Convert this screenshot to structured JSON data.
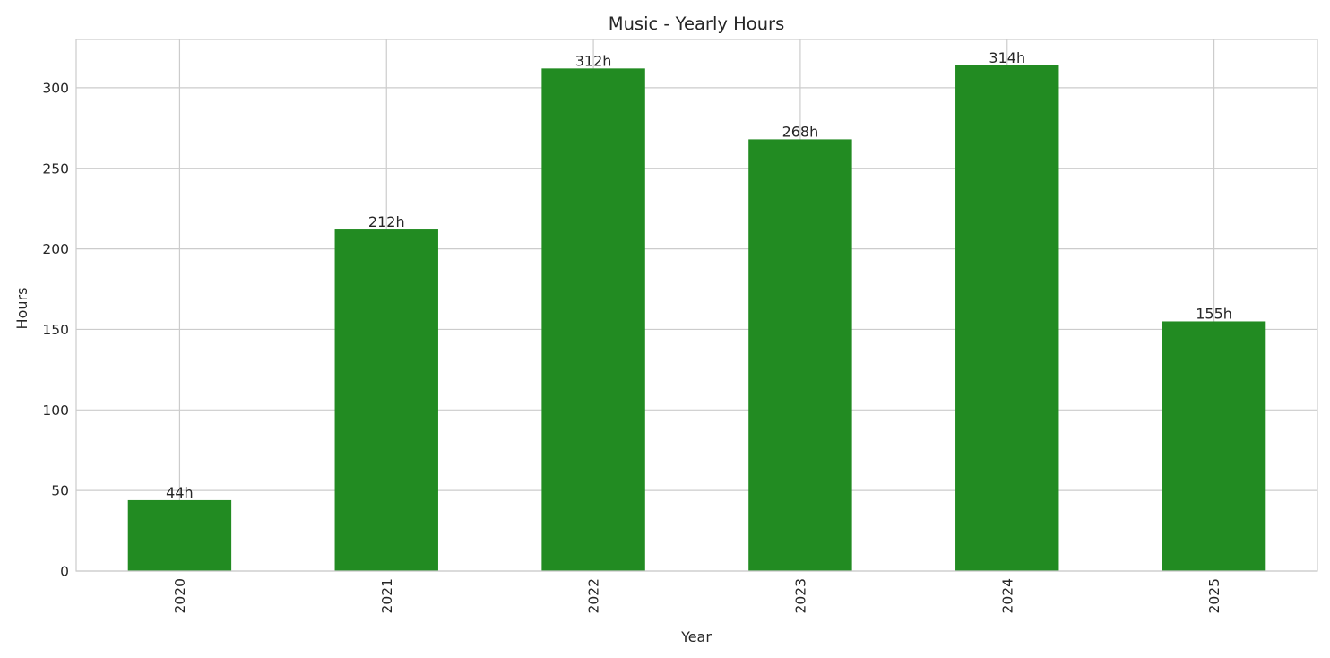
{
  "chart_data": {
    "type": "bar",
    "title": "Music - Yearly Hours",
    "xlabel": "Year",
    "ylabel": "Hours",
    "categories": [
      "2020",
      "2021",
      "2022",
      "2023",
      "2024",
      "2025"
    ],
    "values": [
      44,
      212,
      312,
      268,
      314,
      155
    ],
    "data_labels": [
      "44h",
      "212h",
      "312h",
      "268h",
      "314h",
      "155h"
    ],
    "ylim": [
      0,
      330
    ],
    "yticks": [
      0,
      50,
      100,
      150,
      200,
      250,
      300
    ],
    "grid": true,
    "legend": "none",
    "bar_color": "#228b22",
    "grid_color": "#cccccc",
    "x_tick_rotation": 90
  }
}
